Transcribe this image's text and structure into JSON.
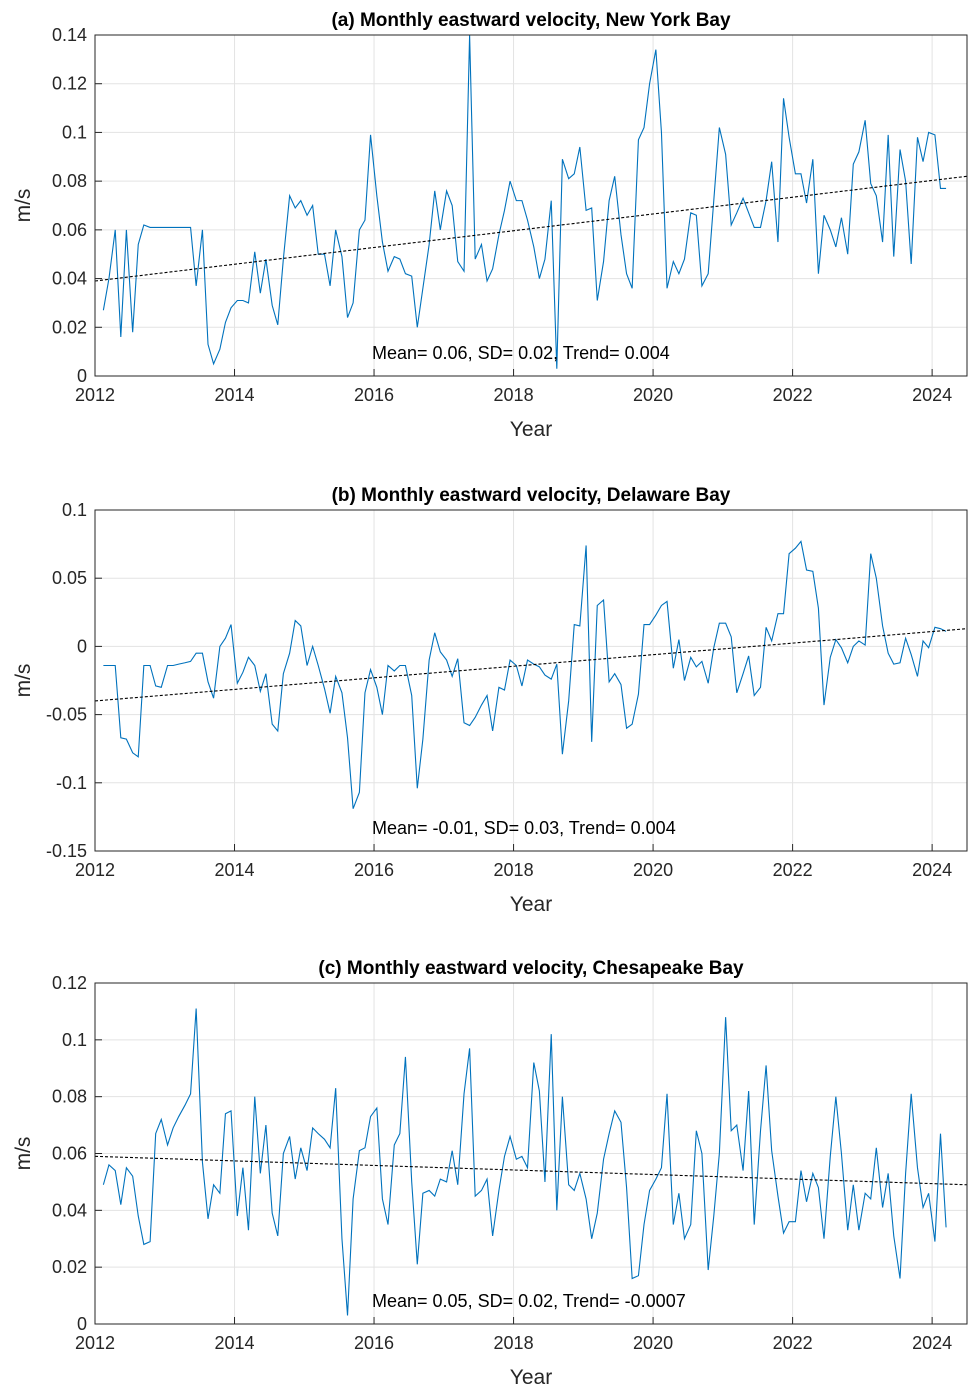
{
  "chart_data": [
    {
      "type": "line",
      "title": "(a) Monthly eastward velocity, New York Bay",
      "xlabel": "Year",
      "ylabel": "m/s",
      "annotation": "Mean= 0.06, SD= 0.02, Trend= 0.004",
      "grid": true,
      "xlim": [
        2012,
        2024.5
      ],
      "xticks": [
        2012,
        2014,
        2016,
        2018,
        2020,
        2022,
        2024
      ],
      "ylim": [
        0,
        0.14
      ],
      "yticks": [
        0,
        0.02,
        0.04,
        0.06,
        0.08,
        0.1,
        0.12,
        0.14
      ],
      "x": [
        2012.12,
        2012.2,
        2012.29,
        2012.37,
        2012.45,
        2012.54,
        2012.62,
        2012.7,
        2012.79,
        2012.87,
        2012.95,
        2013.04,
        2013.12,
        2013.2,
        2013.29,
        2013.37,
        2013.45,
        2013.54,
        2013.62,
        2013.7,
        2013.79,
        2013.87,
        2013.95,
        2014.04,
        2014.12,
        2014.2,
        2014.29,
        2014.37,
        2014.45,
        2014.54,
        2014.62,
        2014.7,
        2014.79,
        2014.87,
        2014.95,
        2015.04,
        2015.12,
        2015.2,
        2015.29,
        2015.37,
        2015.45,
        2015.54,
        2015.62,
        2015.7,
        2015.79,
        2015.87,
        2015.95,
        2016.04,
        2016.12,
        2016.2,
        2016.29,
        2016.37,
        2016.45,
        2016.54,
        2016.62,
        2016.7,
        2016.79,
        2016.87,
        2016.95,
        2017.04,
        2017.12,
        2017.2,
        2017.29,
        2017.37,
        2017.45,
        2017.54,
        2017.62,
        2017.7,
        2017.79,
        2017.87,
        2017.95,
        2018.04,
        2018.12,
        2018.2,
        2018.29,
        2018.37,
        2018.45,
        2018.54,
        2018.62,
        2018.7,
        2018.79,
        2018.87,
        2018.95,
        2019.04,
        2019.12,
        2019.2,
        2019.29,
        2019.37,
        2019.45,
        2019.54,
        2019.62,
        2019.7,
        2019.79,
        2019.87,
        2019.95,
        2020.04,
        2020.12,
        2020.2,
        2020.29,
        2020.37,
        2020.45,
        2020.54,
        2020.62,
        2020.7,
        2020.79,
        2020.87,
        2020.95,
        2021.04,
        2021.12,
        2021.2,
        2021.29,
        2021.37,
        2021.45,
        2021.54,
        2021.62,
        2021.7,
        2021.79,
        2021.87,
        2021.95,
        2022.04,
        2022.12,
        2022.2,
        2022.29,
        2022.37,
        2022.45,
        2022.54,
        2022.62,
        2022.7,
        2022.79,
        2022.87,
        2022.95,
        2023.04,
        2023.12,
        2023.2,
        2023.29,
        2023.37,
        2023.45,
        2023.54,
        2023.62,
        2023.7,
        2023.79,
        2023.87,
        2023.95,
        2024.04,
        2024.12,
        2024.2
      ],
      "series": [
        {
          "color": "#0072bd",
          "values": [
            0.027,
            0.04,
            0.06,
            0.016,
            0.06,
            0.018,
            0.054,
            0.062,
            0.061,
            0.061,
            0.061,
            0.061,
            0.061,
            0.061,
            0.061,
            0.061,
            0.037,
            0.06,
            0.013,
            0.005,
            0.011,
            0.022,
            0.028,
            0.031,
            0.031,
            0.03,
            0.051,
            0.034,
            0.048,
            0.029,
            0.021,
            0.048,
            0.074,
            0.069,
            0.072,
            0.066,
            0.07,
            0.05,
            0.05,
            0.037,
            0.06,
            0.049,
            0.024,
            0.03,
            0.06,
            0.064,
            0.099,
            0.074,
            0.055,
            0.043,
            0.049,
            0.048,
            0.042,
            0.041,
            0.02,
            0.036,
            0.054,
            0.076,
            0.06,
            0.076,
            0.07,
            0.047,
            0.043,
            0.14,
            0.048,
            0.054,
            0.039,
            0.044,
            0.058,
            0.068,
            0.08,
            0.072,
            0.072,
            0.064,
            0.053,
            0.04,
            0.048,
            0.072,
            0.003,
            0.089,
            0.081,
            0.083,
            0.094,
            0.068,
            0.069,
            0.031,
            0.047,
            0.072,
            0.082,
            0.058,
            0.042,
            0.036,
            0.097,
            0.102,
            0.12,
            0.134,
            0.1,
            0.036,
            0.047,
            0.042,
            0.048,
            0.067,
            0.066,
            0.037,
            0.042,
            0.072,
            0.102,
            0.091,
            0.062,
            0.067,
            0.073,
            0.067,
            0.061,
            0.061,
            0.072,
            0.088,
            0.055,
            0.114,
            0.098,
            0.083,
            0.083,
            0.071,
            0.089,
            0.042,
            0.066,
            0.06,
            0.053,
            0.065,
            0.05,
            0.087,
            0.092,
            0.105,
            0.079,
            0.074,
            0.055,
            0.099,
            0.049,
            0.093,
            0.08,
            0.046,
            0.098,
            0.088,
            0.1,
            0.099,
            0.077,
            0.077
          ]
        }
      ],
      "trend": {
        "color": "#000000",
        "x": [
          2012,
          2024.5
        ],
        "values": [
          0.039,
          0.082
        ]
      }
    },
    {
      "type": "line",
      "title": "(b) Monthly eastward velocity, Delaware Bay",
      "xlabel": "Year",
      "ylabel": "m/s",
      "annotation": "Mean= -0.01, SD= 0.03, Trend= 0.004",
      "grid": true,
      "xlim": [
        2012,
        2024.5
      ],
      "xticks": [
        2012,
        2014,
        2016,
        2018,
        2020,
        2022,
        2024
      ],
      "ylim": [
        -0.15,
        0.1
      ],
      "yticks": [
        -0.15,
        -0.1,
        -0.05,
        0,
        0.05,
        0.1
      ],
      "x": [
        2012.12,
        2012.2,
        2012.29,
        2012.37,
        2012.45,
        2012.54,
        2012.62,
        2012.7,
        2012.79,
        2012.87,
        2012.95,
        2013.04,
        2013.12,
        2013.2,
        2013.29,
        2013.37,
        2013.45,
        2013.54,
        2013.62,
        2013.7,
        2013.79,
        2013.87,
        2013.95,
        2014.04,
        2014.12,
        2014.2,
        2014.29,
        2014.37,
        2014.45,
        2014.54,
        2014.62,
        2014.7,
        2014.79,
        2014.87,
        2014.95,
        2015.04,
        2015.12,
        2015.2,
        2015.29,
        2015.37,
        2015.45,
        2015.54,
        2015.62,
        2015.7,
        2015.79,
        2015.87,
        2015.95,
        2016.04,
        2016.12,
        2016.2,
        2016.29,
        2016.37,
        2016.45,
        2016.54,
        2016.62,
        2016.7,
        2016.79,
        2016.87,
        2016.95,
        2017.04,
        2017.12,
        2017.2,
        2017.29,
        2017.37,
        2017.45,
        2017.54,
        2017.62,
        2017.7,
        2017.79,
        2017.87,
        2017.95,
        2018.04,
        2018.12,
        2018.2,
        2018.29,
        2018.37,
        2018.45,
        2018.54,
        2018.62,
        2018.7,
        2018.79,
        2018.87,
        2018.95,
        2019.04,
        2019.12,
        2019.2,
        2019.29,
        2019.37,
        2019.45,
        2019.54,
        2019.62,
        2019.7,
        2019.79,
        2019.87,
        2019.95,
        2020.04,
        2020.12,
        2020.2,
        2020.29,
        2020.37,
        2020.45,
        2020.54,
        2020.62,
        2020.7,
        2020.79,
        2020.87,
        2020.95,
        2021.04,
        2021.12,
        2021.2,
        2021.29,
        2021.37,
        2021.45,
        2021.54,
        2021.62,
        2021.7,
        2021.79,
        2021.87,
        2021.95,
        2022.04,
        2022.12,
        2022.2,
        2022.29,
        2022.37,
        2022.45,
        2022.54,
        2022.62,
        2022.7,
        2022.79,
        2022.87,
        2022.95,
        2023.04,
        2023.12,
        2023.2,
        2023.29,
        2023.37,
        2023.45,
        2023.54,
        2023.62,
        2023.7,
        2023.79,
        2023.87,
        2023.95,
        2024.04,
        2024.12,
        2024.2
      ],
      "series": [
        {
          "color": "#0072bd",
          "values": [
            -0.014,
            -0.014,
            -0.014,
            -0.067,
            -0.068,
            -0.078,
            -0.081,
            -0.014,
            -0.014,
            -0.029,
            -0.03,
            -0.014,
            -0.014,
            -0.013,
            -0.012,
            -0.011,
            -0.005,
            -0.005,
            -0.026,
            -0.038,
            0.0,
            0.006,
            0.016,
            -0.027,
            -0.019,
            -0.008,
            -0.014,
            -0.033,
            -0.02,
            -0.057,
            -0.062,
            -0.02,
            -0.005,
            0.019,
            0.015,
            -0.014,
            0.0,
            -0.014,
            -0.031,
            -0.049,
            -0.022,
            -0.034,
            -0.067,
            -0.119,
            -0.107,
            -0.034,
            -0.017,
            -0.03,
            -0.05,
            -0.014,
            -0.018,
            -0.014,
            -0.014,
            -0.036,
            -0.104,
            -0.068,
            -0.01,
            0.01,
            -0.004,
            -0.01,
            -0.022,
            -0.009,
            -0.056,
            -0.058,
            -0.052,
            -0.043,
            -0.036,
            -0.062,
            -0.03,
            -0.032,
            -0.01,
            -0.014,
            -0.029,
            -0.01,
            -0.013,
            -0.015,
            -0.021,
            -0.024,
            -0.013,
            -0.079,
            -0.04,
            0.016,
            0.015,
            0.074,
            -0.07,
            0.03,
            0.034,
            -0.026,
            -0.02,
            -0.028,
            -0.06,
            -0.057,
            -0.035,
            0.016,
            0.016,
            0.023,
            0.03,
            0.033,
            -0.016,
            0.005,
            -0.025,
            -0.008,
            -0.015,
            -0.011,
            -0.027,
            -0.001,
            0.017,
            0.017,
            0.007,
            -0.034,
            -0.02,
            -0.007,
            -0.036,
            -0.03,
            0.014,
            0.004,
            0.024,
            0.024,
            0.068,
            0.072,
            0.077,
            0.056,
            0.055,
            0.028,
            -0.043,
            -0.008,
            0.005,
            -0.001,
            -0.012,
            0.0,
            0.004,
            0.001,
            0.068,
            0.05,
            0.015,
            -0.005,
            -0.013,
            -0.012,
            0.006,
            -0.006,
            -0.022,
            0.004,
            -0.001,
            0.014,
            0.013,
            0.011
          ]
        }
      ],
      "trend": {
        "color": "#000000",
        "x": [
          2012,
          2024.5
        ],
        "values": [
          -0.04,
          0.013
        ]
      }
    },
    {
      "type": "line",
      "title": "(c) Monthly eastward velocity, Chesapeake Bay",
      "xlabel": "Year",
      "ylabel": "m/s",
      "annotation": "Mean= 0.05, SD= 0.02, Trend= -0.0007",
      "grid": true,
      "xlim": [
        2012,
        2024.5
      ],
      "xticks": [
        2012,
        2014,
        2016,
        2018,
        2020,
        2022,
        2024
      ],
      "ylim": [
        0,
        0.12
      ],
      "yticks": [
        0,
        0.02,
        0.04,
        0.06,
        0.08,
        0.1,
        0.12
      ],
      "x": [
        2012.12,
        2012.2,
        2012.29,
        2012.37,
        2012.45,
        2012.54,
        2012.62,
        2012.7,
        2012.79,
        2012.87,
        2012.95,
        2013.04,
        2013.12,
        2013.2,
        2013.29,
        2013.37,
        2013.45,
        2013.54,
        2013.62,
        2013.7,
        2013.79,
        2013.87,
        2013.95,
        2014.04,
        2014.12,
        2014.2,
        2014.29,
        2014.37,
        2014.45,
        2014.54,
        2014.62,
        2014.7,
        2014.79,
        2014.87,
        2014.95,
        2015.04,
        2015.12,
        2015.2,
        2015.29,
        2015.37,
        2015.45,
        2015.54,
        2015.62,
        2015.7,
        2015.79,
        2015.87,
        2015.95,
        2016.04,
        2016.12,
        2016.2,
        2016.29,
        2016.37,
        2016.45,
        2016.54,
        2016.62,
        2016.7,
        2016.79,
        2016.87,
        2016.95,
        2017.04,
        2017.12,
        2017.2,
        2017.29,
        2017.37,
        2017.45,
        2017.54,
        2017.62,
        2017.7,
        2017.79,
        2017.87,
        2017.95,
        2018.04,
        2018.12,
        2018.2,
        2018.29,
        2018.37,
        2018.45,
        2018.54,
        2018.62,
        2018.7,
        2018.79,
        2018.87,
        2018.95,
        2019.04,
        2019.12,
        2019.2,
        2019.29,
        2019.37,
        2019.45,
        2019.54,
        2019.62,
        2019.7,
        2019.79,
        2019.87,
        2019.95,
        2020.04,
        2020.12,
        2020.2,
        2020.29,
        2020.37,
        2020.45,
        2020.54,
        2020.62,
        2020.7,
        2020.79,
        2020.87,
        2020.95,
        2021.04,
        2021.12,
        2021.2,
        2021.29,
        2021.37,
        2021.45,
        2021.54,
        2021.62,
        2021.7,
        2021.79,
        2021.87,
        2021.95,
        2022.04,
        2022.12,
        2022.2,
        2022.29,
        2022.37,
        2022.45,
        2022.54,
        2022.62,
        2022.7,
        2022.79,
        2022.87,
        2022.95,
        2023.04,
        2023.12,
        2023.2,
        2023.29,
        2023.37,
        2023.45,
        2023.54,
        2023.62,
        2023.7,
        2023.79,
        2023.87,
        2023.95,
        2024.04,
        2024.12,
        2024.2
      ],
      "series": [
        {
          "color": "#0072bd",
          "values": [
            0.049,
            0.056,
            0.054,
            0.042,
            0.055,
            0.052,
            0.038,
            0.028,
            0.029,
            0.067,
            0.072,
            0.063,
            0.069,
            0.073,
            0.077,
            0.081,
            0.111,
            0.057,
            0.037,
            0.049,
            0.046,
            0.074,
            0.075,
            0.038,
            0.055,
            0.033,
            0.08,
            0.053,
            0.07,
            0.039,
            0.031,
            0.06,
            0.066,
            0.051,
            0.062,
            0.054,
            0.069,
            0.067,
            0.065,
            0.062,
            0.083,
            0.03,
            0.003,
            0.044,
            0.061,
            0.062,
            0.073,
            0.076,
            0.044,
            0.035,
            0.063,
            0.067,
            0.094,
            0.05,
            0.021,
            0.046,
            0.047,
            0.045,
            0.051,
            0.05,
            0.061,
            0.049,
            0.081,
            0.097,
            0.045,
            0.047,
            0.051,
            0.031,
            0.047,
            0.059,
            0.066,
            0.058,
            0.059,
            0.055,
            0.092,
            0.082,
            0.05,
            0.102,
            0.04,
            0.08,
            0.049,
            0.047,
            0.053,
            0.044,
            0.03,
            0.039,
            0.058,
            0.067,
            0.075,
            0.071,
            0.048,
            0.016,
            0.017,
            0.035,
            0.047,
            0.051,
            0.055,
            0.081,
            0.035,
            0.046,
            0.03,
            0.035,
            0.068,
            0.06,
            0.019,
            0.038,
            0.06,
            0.108,
            0.068,
            0.07,
            0.054,
            0.082,
            0.035,
            0.068,
            0.091,
            0.061,
            0.045,
            0.032,
            0.036,
            0.036,
            0.054,
            0.043,
            0.053,
            0.048,
            0.03,
            0.059,
            0.08,
            0.06,
            0.033,
            0.049,
            0.033,
            0.046,
            0.044,
            0.062,
            0.041,
            0.053,
            0.031,
            0.016,
            0.053,
            0.081,
            0.055,
            0.041,
            0.046,
            0.029,
            0.067,
            0.034
          ]
        }
      ],
      "trend": {
        "color": "#000000",
        "x": [
          2012,
          2024.5
        ],
        "values": [
          0.059,
          0.049
        ]
      }
    }
  ]
}
